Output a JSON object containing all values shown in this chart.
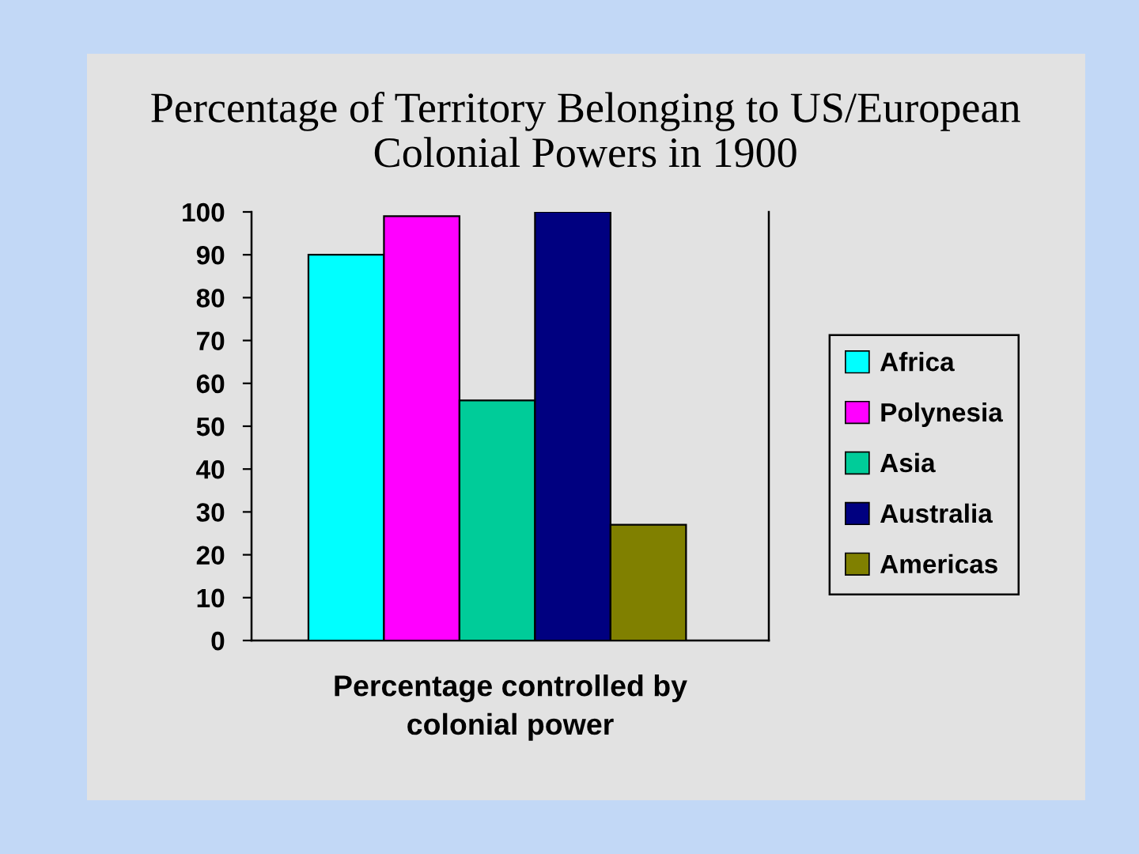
{
  "chart_data": {
    "type": "bar",
    "title": "Percentage of Territory Belonging to US/European Colonial Powers in 1900",
    "xlabel": "Percentage controlled by colonial power",
    "categories": [
      null
    ],
    "series": [
      {
        "name": "Africa",
        "color": "#00ffff",
        "values": [
          90
        ]
      },
      {
        "name": "Polynesia",
        "color": "#ff00ff",
        "values": [
          99
        ]
      },
      {
        "name": "Asia",
        "color": "#00cc99",
        "values": [
          56
        ]
      },
      {
        "name": "Australia",
        "color": "#000080",
        "values": [
          100
        ]
      },
      {
        "name": "Americas",
        "color": "#808000",
        "values": [
          27
        ]
      }
    ],
    "ylim": [
      0,
      100
    ],
    "yticks": [
      0,
      10,
      20,
      30,
      40,
      50,
      60,
      70,
      80,
      90,
      100
    ],
    "legend": "right"
  }
}
